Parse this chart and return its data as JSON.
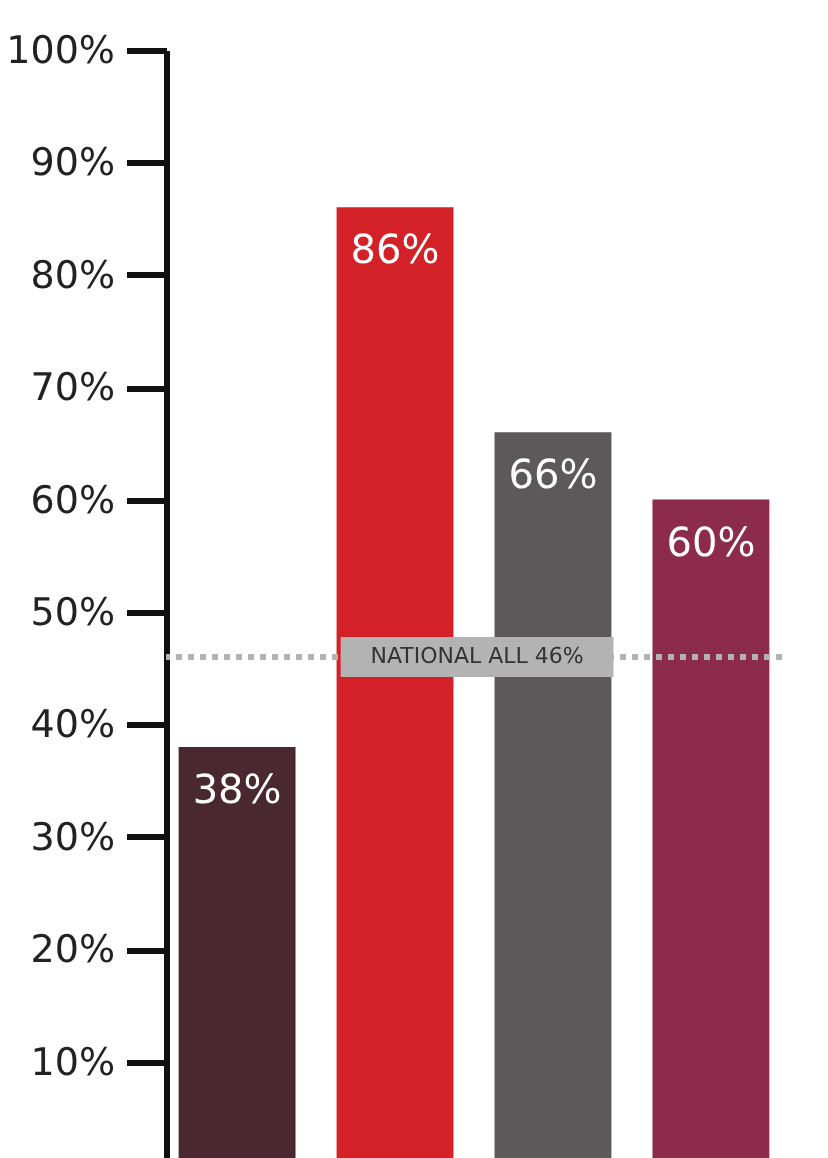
{
  "chart_data": {
    "type": "bar",
    "categories": [
      null,
      null,
      null,
      null
    ],
    "values": [
      38,
      86,
      66,
      60
    ],
    "colors": [
      "#4a2832",
      "#d42127",
      "#5b5959",
      "#8c2b4c"
    ],
    "value_labels": [
      "38%",
      "86%",
      "66%",
      "60%"
    ],
    "ylim": [
      0,
      100
    ],
    "yticks": [
      {
        "value": 10,
        "label": "10%"
      },
      {
        "value": 20,
        "label": "20%"
      },
      {
        "value": 30,
        "label": "30%"
      },
      {
        "value": 40,
        "label": "40%"
      },
      {
        "value": 50,
        "label": "50%"
      },
      {
        "value": 60,
        "label": "60%"
      },
      {
        "value": 70,
        "label": "70%"
      },
      {
        "value": 80,
        "label": "80%"
      },
      {
        "value": 90,
        "label": "90%"
      },
      {
        "value": 100,
        "label": "100%"
      }
    ],
    "ref_lines": [
      {
        "axis": "y",
        "value": 46,
        "label": "NATIONAL ALL 46%",
        "color": "#b3b3b3",
        "line_style": "dotted"
      }
    ],
    "grid": false
  }
}
